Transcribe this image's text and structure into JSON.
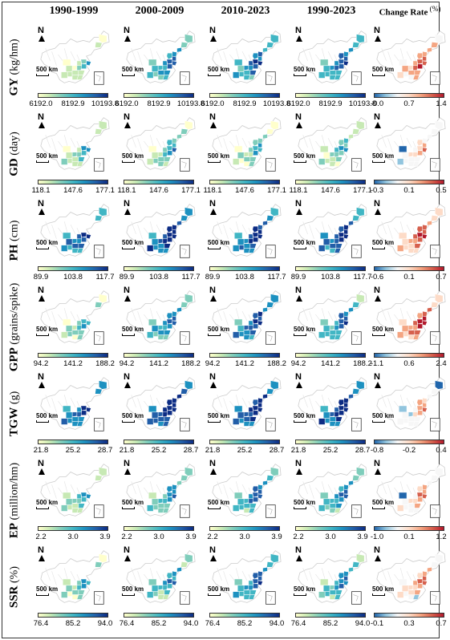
{
  "columns": [
    {
      "label": "1990-1999"
    },
    {
      "label": "2000-2009"
    },
    {
      "label": "2010-2023"
    },
    {
      "label": "1990-2023"
    },
    {
      "label": "Change Rate",
      "unit": "(%)"
    }
  ],
  "map_labels": {
    "north": "N",
    "scale": "500 km"
  },
  "colors": {
    "sequential": [
      "#ffffcc",
      "#c7e9b4",
      "#7fcdbb",
      "#41b6c4",
      "#1d91c0",
      "#225ea8",
      "#0c2c84"
    ],
    "diverging": [
      "#2166ac",
      "#92c5de",
      "#f7f7f7",
      "#fddbc7",
      "#f4a582",
      "#d6604d",
      "#b2182b"
    ],
    "outline": "#cccccc",
    "background_fill": "#ffffff"
  },
  "rows": [
    {
      "abbr": "GY",
      "unit": "(kg/hm)",
      "ticks": [
        "6192.0",
        "8192.9",
        "10193.8"
      ],
      "change_ticks": [
        "-0.0",
        "0.7",
        "1.4"
      ],
      "levels": [
        0.25,
        0.55,
        0.6,
        0.6
      ],
      "change_level": 0.6
    },
    {
      "abbr": "GD",
      "unit": "(day)",
      "ticks": [
        "118.1",
        "147.6",
        "177.1"
      ],
      "change_ticks": [
        "-0.3",
        "0.1",
        "0.5"
      ],
      "levels": [
        0.3,
        0.35,
        0.3,
        0.3
      ],
      "change_level": 0.4
    },
    {
      "abbr": "PH",
      "unit": "(cm)",
      "ticks": [
        "89.9",
        "103.8",
        "117.7"
      ],
      "change_ticks": [
        "-0.6",
        "0.1",
        "0.7"
      ],
      "levels": [
        0.7,
        0.8,
        0.75,
        0.75
      ],
      "change_level": 0.65
    },
    {
      "abbr": "GPP",
      "unit": "(grains/spike)",
      "ticks": [
        "94.2",
        "141.2",
        "188.2"
      ],
      "change_ticks": [
        "-1.1",
        "0.6",
        "2.4"
      ],
      "levels": [
        0.35,
        0.55,
        0.7,
        0.55
      ],
      "change_level": 0.7
    },
    {
      "abbr": "TGW",
      "unit": "(g)",
      "ticks": [
        "21.8",
        "25.2",
        "28.7"
      ],
      "change_ticks": [
        "-0.8",
        "-0.2",
        "0.4"
      ],
      "levels": [
        0.75,
        0.85,
        0.8,
        0.8
      ],
      "change_level": 0.4
    },
    {
      "abbr": "EP",
      "unit": "(million/hm)",
      "ticks": [
        "2.2",
        "3.0",
        "3.9"
      ],
      "change_ticks": [
        "-1.0",
        "0.1",
        "1.2"
      ],
      "levels": [
        0.35,
        0.45,
        0.55,
        0.5
      ],
      "change_level": 0.45
    },
    {
      "abbr": "SSR",
      "unit": "(%)",
      "ticks": [
        "76.4",
        "85.2",
        "94.0"
      ],
      "change_ticks": [
        "-0.1",
        "0.3",
        "0.7"
      ],
      "levels": [
        0.35,
        0.45,
        0.6,
        0.5
      ],
      "change_level": 0.5
    }
  ]
}
